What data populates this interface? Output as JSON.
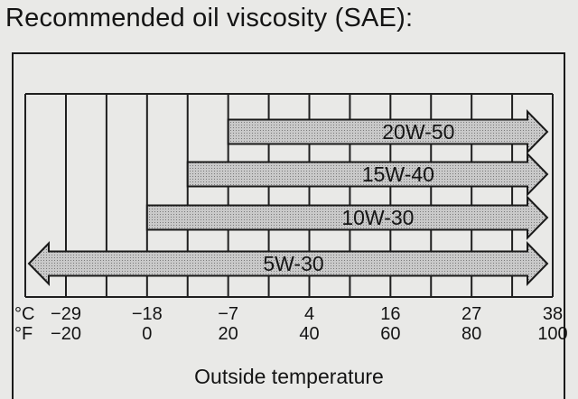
{
  "title": "Recommended oil viscosity (SAE):",
  "chart_data": {
    "type": "range-bar",
    "xlabel": "Outside temperature",
    "celsius_unit": "°C",
    "fahrenheit_unit": "°F",
    "celsius_ticks": [
      "−29",
      "−18",
      "−7",
      "4",
      "16",
      "27",
      "38"
    ],
    "fahrenheit_ticks": [
      "−20",
      "0",
      "20",
      "40",
      "60",
      "80",
      "100"
    ],
    "xlim_f": [
      -20,
      100
    ],
    "grid_step_f": 10,
    "arrow_fill": "#c4c4c4",
    "series": [
      {
        "name": "20W-50",
        "from_f": 20,
        "to_f": 100,
        "left_arrow": false,
        "right_arrow": true
      },
      {
        "name": "15W-40",
        "from_f": 10,
        "to_f": 100,
        "left_arrow": false,
        "right_arrow": true
      },
      {
        "name": "10W-30",
        "from_f": 0,
        "to_f": 100,
        "left_arrow": false,
        "right_arrow": true
      },
      {
        "name": "5W-30",
        "from_f": -20,
        "to_f": 100,
        "left_arrow": true,
        "right_arrow": true
      }
    ]
  }
}
